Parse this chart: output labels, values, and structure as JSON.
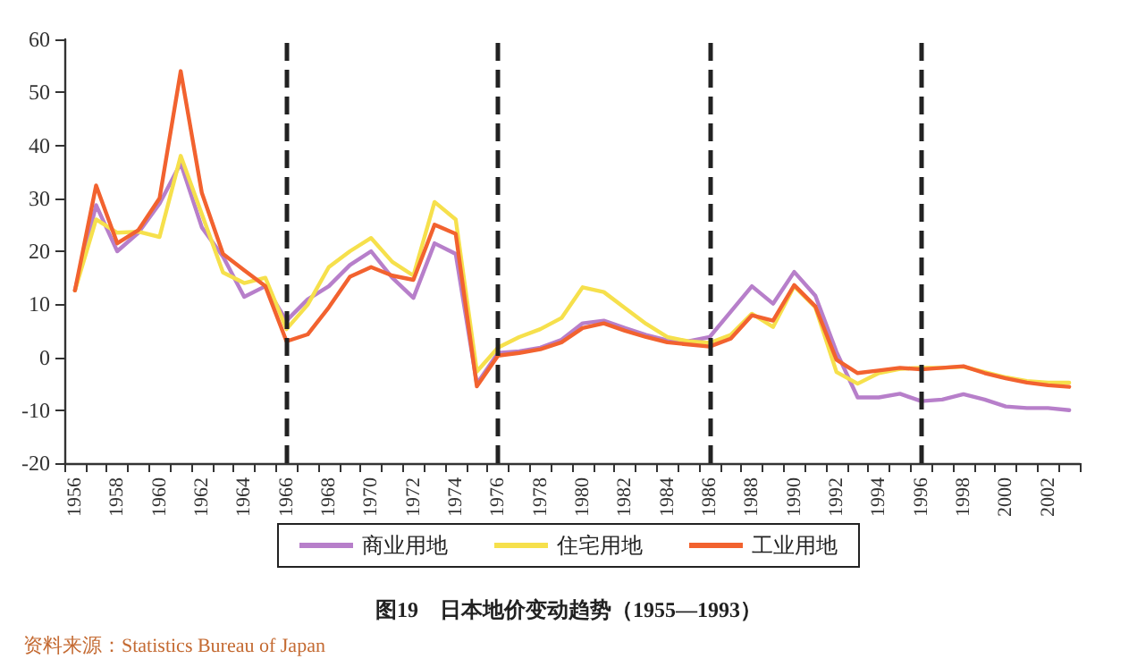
{
  "chart_data": {
    "type": "line",
    "title": "图19　日本地价变动趋势（1955—1993）",
    "annotations": [
      "资料来源：Statistics Bureau of Japan"
    ],
    "x": [
      1956,
      1957,
      1958,
      1959,
      1960,
      1961,
      1962,
      1963,
      1964,
      1965,
      1966,
      1967,
      1968,
      1969,
      1970,
      1971,
      1972,
      1973,
      1974,
      1975,
      1976,
      1977,
      1978,
      1979,
      1980,
      1981,
      1982,
      1983,
      1984,
      1985,
      1986,
      1987,
      1988,
      1989,
      1990,
      1991,
      1992,
      1993,
      1994,
      1995,
      1996,
      1997,
      1998,
      1999,
      2000,
      2001,
      2002,
      2003
    ],
    "xlim": [
      1955.5,
      2003.5
    ],
    "xticks": [
      {
        "value": 1955.5,
        "label": null
      },
      1956,
      {
        "value": 1956.5,
        "label": null
      },
      {
        "value": 1957.5,
        "label": null
      },
      1958,
      {
        "value": 1958.5,
        "label": null
      },
      {
        "value": 1959.5,
        "label": null
      },
      1960,
      {
        "value": 1960.5,
        "label": null
      },
      {
        "value": 1961.5,
        "label": null
      },
      1962,
      {
        "value": 1962.5,
        "label": null
      },
      {
        "value": 1963.5,
        "label": null
      },
      1964,
      {
        "value": 1964.5,
        "label": null
      },
      {
        "value": 1965.5,
        "label": null
      },
      1966,
      {
        "value": 1966.5,
        "label": null
      },
      {
        "value": 1967.5,
        "label": null
      },
      1968,
      {
        "value": 1968.5,
        "label": null
      },
      {
        "value": 1969.5,
        "label": null
      },
      1970,
      {
        "value": 1970.5,
        "label": null
      },
      {
        "value": 1971.5,
        "label": null
      },
      1972,
      {
        "value": 1972.5,
        "label": null
      },
      {
        "value": 1973.5,
        "label": null
      },
      1974,
      {
        "value": 1974.5,
        "label": null
      },
      {
        "value": 1975.5,
        "label": null
      },
      1976,
      {
        "value": 1976.5,
        "label": null
      },
      {
        "value": 1977.5,
        "label": null
      },
      1978,
      {
        "value": 1978.5,
        "label": null
      },
      {
        "value": 1979.5,
        "label": null
      },
      1980,
      {
        "value": 1980.5,
        "label": null
      },
      {
        "value": 1981.5,
        "label": null
      },
      1982,
      {
        "value": 1982.5,
        "label": null
      },
      {
        "value": 1983.5,
        "label": null
      },
      1984,
      {
        "value": 1984.5,
        "label": null
      },
      {
        "value": 1985.5,
        "label": null
      },
      1986,
      {
        "value": 1986.5,
        "label": null
      },
      {
        "value": 1987.5,
        "label": null
      },
      1988,
      {
        "value": 1988.5,
        "label": null
      },
      {
        "value": 1989.5,
        "label": null
      },
      1990,
      {
        "value": 1990.5,
        "label": null
      },
      {
        "value": 1991.5,
        "label": null
      },
      1992,
      {
        "value": 1992.5,
        "label": null
      },
      {
        "value": 1993.5,
        "label": null
      },
      1994,
      {
        "value": 1994.5,
        "label": null
      },
      {
        "value": 1995.5,
        "label": null
      },
      1996,
      {
        "value": 1996.5,
        "label": null
      },
      {
        "value": 1997.5,
        "label": null
      },
      1998,
      {
        "value": 1998.5,
        "label": null
      },
      {
        "value": 1999.5,
        "label": null
      },
      2000,
      {
        "value": 2000.5,
        "label": null
      },
      {
        "value": 2001.5,
        "label": null
      },
      2002,
      {
        "value": 2002.5,
        "label": null
      },
      {
        "value": 2003.5,
        "label": null
      }
    ],
    "ylim": [
      -20,
      60
    ],
    "yticks": [
      -20,
      -10,
      0,
      10,
      20,
      30,
      40,
      50,
      60
    ],
    "series": [
      {
        "name": "商业用地",
        "color": "#b77fca",
        "values": [
          12.6,
          28.7,
          20,
          23.5,
          29,
          36.6,
          24.5,
          19,
          11.4,
          13.4,
          6.9,
          10.9,
          13.4,
          17.4,
          20,
          15,
          11.2,
          21.5,
          19.5,
          -5,
          0.8,
          1.1,
          1.8,
          3.3,
          6.4,
          6.9,
          5.5,
          4.2,
          3.2,
          3,
          3.8,
          8.6,
          13.4,
          10.1,
          16.1,
          11.6,
          1,
          -7.6,
          -7.6,
          -6.9,
          -8.3,
          -8,
          -7,
          -8,
          -9.3,
          -9.6,
          -9.6,
          -10
        ]
      },
      {
        "name": "住宅用地",
        "color": "#f6e04c",
        "values": [
          12.6,
          26,
          23.5,
          23.7,
          22.7,
          38,
          27,
          16,
          14,
          15,
          5.3,
          9.9,
          17,
          20,
          22.5,
          18,
          15.4,
          29.3,
          26,
          -2.7,
          1.8,
          3.8,
          5.3,
          7.4,
          13.2,
          12.3,
          9.3,
          6.3,
          3.8,
          3,
          2.7,
          4.2,
          8.2,
          5.7,
          13.4,
          9.4,
          -2.8,
          -5,
          -3,
          -2.2,
          -2,
          -2,
          -1.8,
          -2.8,
          -3.8,
          -4.5,
          -4.8,
          -4.8
        ]
      },
      {
        "name": "工业用地",
        "color": "#f2622f",
        "values": [
          12.6,
          32.4,
          21.5,
          24,
          30,
          54,
          31,
          19.5,
          16.4,
          13.4,
          3,
          4.3,
          9.4,
          15.2,
          17,
          15.4,
          14.6,
          25,
          23.3,
          -5.5,
          0.3,
          0.8,
          1.5,
          2.8,
          5.5,
          6.4,
          5,
          3.8,
          2.8,
          2.4,
          2,
          3.5,
          7.9,
          6.9,
          13.6,
          9.6,
          -0.5,
          -3,
          -2.5,
          -2,
          -2.3,
          -2,
          -1.7,
          -3,
          -4,
          -4.8,
          -5.3,
          -5.6
        ]
      }
    ],
    "ref_lines": [
      {
        "axis": "x",
        "value": 1966,
        "color": "#222222",
        "line_style": "dashed"
      },
      {
        "axis": "x",
        "value": 1976,
        "color": "#222222",
        "line_style": "dashed"
      },
      {
        "axis": "x",
        "value": 1986,
        "color": "#222222",
        "line_style": "dashed"
      },
      {
        "axis": "x",
        "value": 1996,
        "color": "#222222",
        "line_style": "dashed"
      }
    ],
    "legend": "bottom",
    "marker": "none",
    "grid": false
  }
}
